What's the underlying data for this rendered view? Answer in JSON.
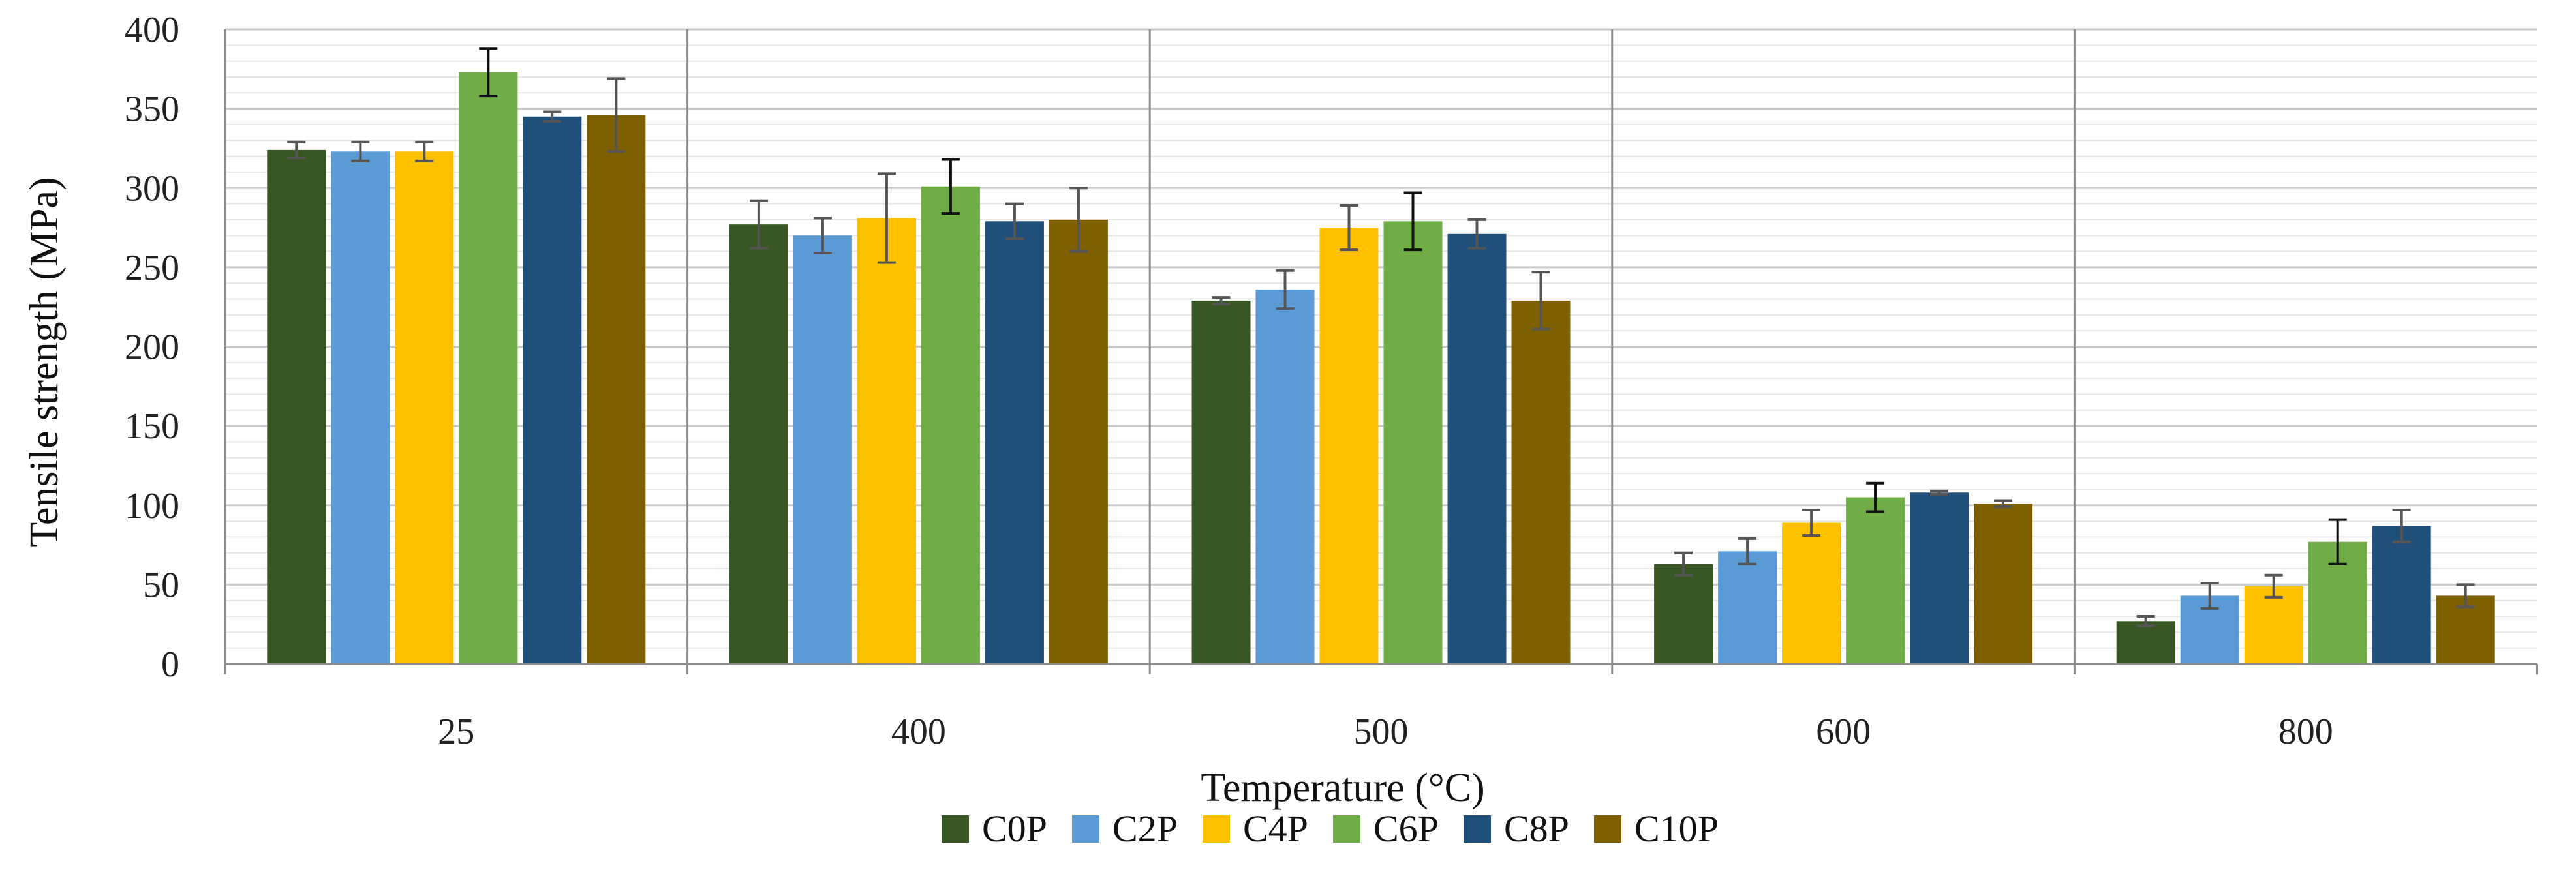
{
  "chart_data": {
    "type": "bar",
    "title": "",
    "xlabel": "Temperature (°C)",
    "ylabel": "Tensile strength (MPa)",
    "ylim": [
      0,
      400
    ],
    "yticks": [
      0,
      50,
      100,
      150,
      200,
      250,
      300,
      350,
      400
    ],
    "grid": "horizontal",
    "legend_position": "bottom",
    "categories": [
      "25",
      "400",
      "500",
      "600",
      "800"
    ],
    "series": [
      {
        "name": "C0P",
        "color": "#375623",
        "values": [
          324,
          277,
          229,
          63,
          27
        ],
        "errors": [
          5,
          15,
          2,
          7,
          3
        ]
      },
      {
        "name": "C2P",
        "color": "#5B9BD5",
        "values": [
          323,
          270,
          236,
          71,
          43
        ],
        "errors": [
          6,
          11,
          12,
          8,
          8
        ]
      },
      {
        "name": "C4P",
        "color": "#FFC000",
        "values": [
          323,
          281,
          275,
          89,
          49
        ],
        "errors": [
          6,
          28,
          14,
          8,
          7
        ]
      },
      {
        "name": "C6P",
        "color": "#70AD47",
        "values": [
          373,
          301,
          279,
          105,
          77
        ],
        "errors": [
          15,
          17,
          18,
          9,
          14
        ]
      },
      {
        "name": "C8P",
        "color": "#1F4E79",
        "values": [
          345,
          279,
          271,
          108,
          87
        ],
        "errors": [
          3,
          11,
          9,
          1,
          10
        ]
      },
      {
        "name": "C10P",
        "color": "#7F6000",
        "values": [
          346,
          280,
          229,
          101,
          43
        ],
        "errors": [
          23,
          20,
          18,
          2,
          7
        ]
      }
    ]
  }
}
